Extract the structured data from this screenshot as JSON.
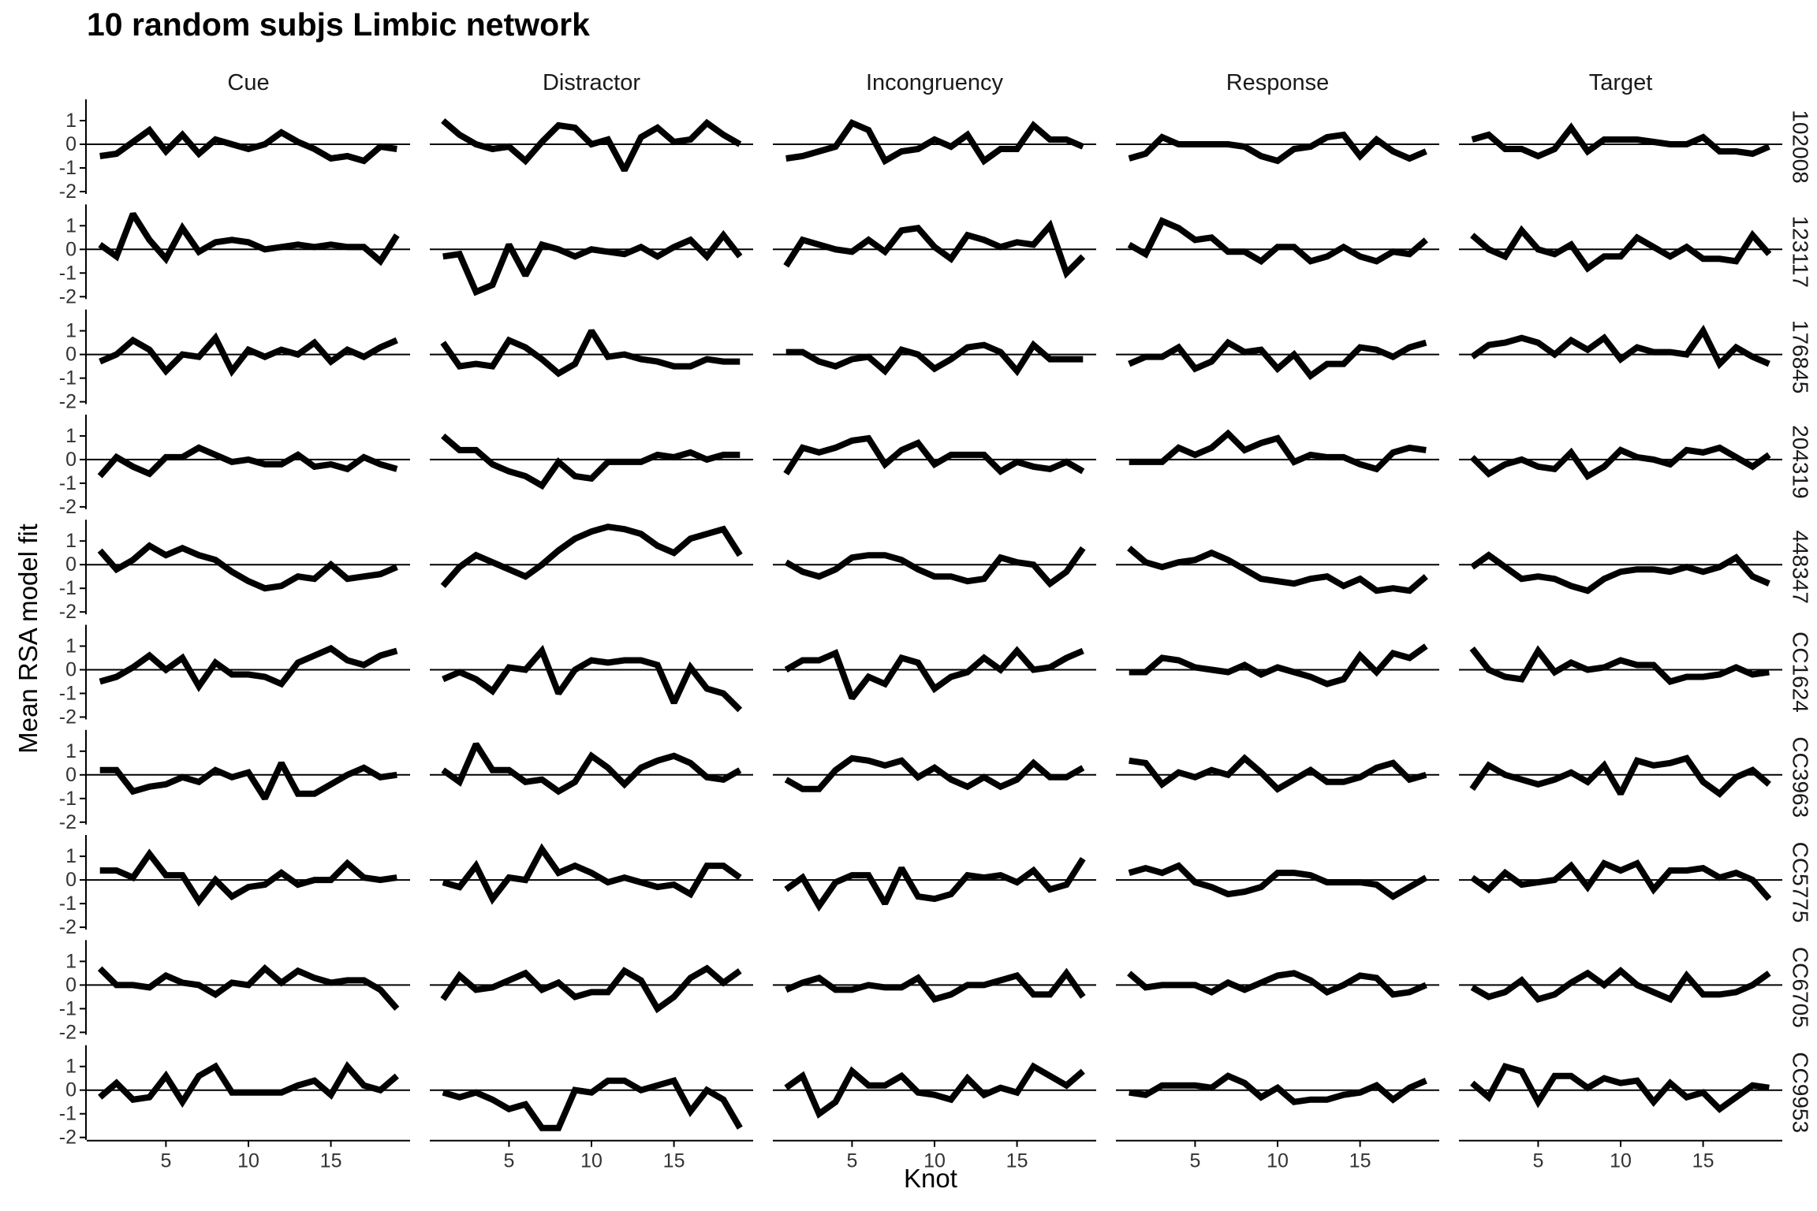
{
  "chart_data": {
    "type": "line",
    "title": "10 random subjs Limbic network",
    "xlabel": "Knot",
    "ylabel": "Mean RSA model fit",
    "columns": [
      "Cue",
      "Distractor",
      "Incongruency",
      "Response",
      "Target"
    ],
    "rows": [
      "102008",
      "123117",
      "176845",
      "204319",
      "448347",
      "CC1624",
      "CC3963",
      "CC5775",
      "CC6705",
      "CC9953"
    ],
    "x": [
      1,
      2,
      3,
      4,
      5,
      6,
      7,
      8,
      9,
      10,
      11,
      12,
      13,
      14,
      15,
      16,
      17,
      18,
      19
    ],
    "x_ticks": [
      5,
      10,
      15
    ],
    "xlim": [
      0.2,
      19.8
    ],
    "y_ticks": [
      1,
      0,
      -1,
      -2
    ],
    "ylim": [
      -2.1,
      1.9
    ],
    "reference_line": 0,
    "line_color": "#000000",
    "grid": false,
    "legend": "none",
    "values": [
      [
        [
          -0.5,
          -0.4,
          0.1,
          0.6,
          -0.3,
          0.4,
          -0.4,
          0.2,
          0.0,
          -0.2,
          0.0,
          0.5,
          0.1,
          -0.2,
          -0.6,
          -0.5,
          -0.7,
          -0.1,
          -0.2
        ],
        [
          1.0,
          0.4,
          0.0,
          -0.2,
          -0.1,
          -0.7,
          0.1,
          0.8,
          0.7,
          0.0,
          0.2,
          -1.1,
          0.3,
          0.7,
          0.1,
          0.2,
          0.9,
          0.4,
          0.0
        ],
        [
          -0.6,
          -0.5,
          -0.3,
          -0.1,
          0.9,
          0.6,
          -0.7,
          -0.3,
          -0.2,
          0.2,
          -0.1,
          0.4,
          -0.7,
          -0.2,
          -0.2,
          0.8,
          0.2,
          0.2,
          -0.1
        ],
        [
          -0.6,
          -0.4,
          0.3,
          0.0,
          0.0,
          0.0,
          0.0,
          -0.1,
          -0.5,
          -0.7,
          -0.2,
          -0.1,
          0.3,
          0.4,
          -0.5,
          0.2,
          -0.3,
          -0.6,
          -0.3
        ],
        [
          0.2,
          0.4,
          -0.2,
          -0.2,
          -0.5,
          -0.2,
          0.7,
          -0.3,
          0.2,
          0.2,
          0.2,
          0.1,
          0.0,
          0.0,
          0.3,
          -0.3,
          -0.3,
          -0.4,
          -0.1
        ]
      ],
      [
        [
          0.2,
          -0.3,
          1.5,
          0.4,
          -0.4,
          0.9,
          -0.1,
          0.3,
          0.4,
          0.3,
          0.0,
          0.1,
          0.2,
          0.1,
          0.2,
          0.1,
          0.1,
          -0.5,
          0.6
        ],
        [
          -0.3,
          -0.2,
          -1.8,
          -1.5,
          0.2,
          -1.1,
          0.2,
          0.0,
          -0.3,
          0.0,
          -0.1,
          -0.2,
          0.1,
          -0.3,
          0.1,
          0.4,
          -0.3,
          0.6,
          -0.3
        ],
        [
          -0.7,
          0.4,
          0.2,
          0.0,
          -0.1,
          0.4,
          -0.1,
          0.8,
          0.9,
          0.1,
          -0.4,
          0.6,
          0.4,
          0.1,
          0.3,
          0.2,
          1.0,
          -1.0,
          -0.3
        ],
        [
          0.2,
          -0.2,
          1.2,
          0.9,
          0.4,
          0.5,
          -0.1,
          -0.1,
          -0.5,
          0.1,
          0.1,
          -0.5,
          -0.3,
          0.1,
          -0.3,
          -0.5,
          -0.1,
          -0.2,
          0.4
        ],
        [
          0.6,
          0.0,
          -0.3,
          0.8,
          0.0,
          -0.2,
          0.2,
          -0.8,
          -0.3,
          -0.3,
          0.5,
          0.1,
          -0.3,
          0.1,
          -0.4,
          -0.4,
          -0.5,
          0.6,
          -0.2
        ]
      ],
      [
        [
          -0.3,
          0.0,
          0.6,
          0.2,
          -0.7,
          0.0,
          -0.1,
          0.7,
          -0.7,
          0.2,
          -0.1,
          0.2,
          0.0,
          0.5,
          -0.3,
          0.2,
          -0.1,
          0.3,
          0.6
        ],
        [
          0.5,
          -0.5,
          -0.4,
          -0.5,
          0.6,
          0.3,
          -0.2,
          -0.8,
          -0.4,
          1.0,
          -0.1,
          0.0,
          -0.2,
          -0.3,
          -0.5,
          -0.5,
          -0.2,
          -0.3,
          -0.3
        ],
        [
          0.1,
          0.1,
          -0.3,
          -0.5,
          -0.2,
          -0.1,
          -0.7,
          0.2,
          0.0,
          -0.6,
          -0.2,
          0.3,
          0.4,
          0.1,
          -0.7,
          0.4,
          -0.2,
          -0.2,
          -0.2
        ],
        [
          -0.4,
          -0.1,
          -0.1,
          0.3,
          -0.6,
          -0.3,
          0.5,
          0.1,
          0.2,
          -0.6,
          0.0,
          -0.9,
          -0.4,
          -0.4,
          0.3,
          0.2,
          -0.1,
          0.3,
          0.5
        ],
        [
          -0.1,
          0.4,
          0.5,
          0.7,
          0.5,
          0.0,
          0.6,
          0.2,
          0.7,
          -0.2,
          0.3,
          0.1,
          0.1,
          0.0,
          1.0,
          -0.4,
          0.3,
          -0.1,
          -0.4
        ]
      ],
      [
        [
          -0.7,
          0.1,
          -0.3,
          -0.6,
          0.1,
          0.1,
          0.5,
          0.2,
          -0.1,
          0.0,
          -0.2,
          -0.2,
          0.2,
          -0.3,
          -0.2,
          -0.4,
          0.1,
          -0.2,
          -0.4
        ],
        [
          1.0,
          0.4,
          0.4,
          -0.2,
          -0.5,
          -0.7,
          -1.1,
          -0.1,
          -0.7,
          -0.8,
          -0.1,
          -0.1,
          -0.1,
          0.2,
          0.1,
          0.3,
          0.0,
          0.2,
          0.2
        ],
        [
          -0.6,
          0.5,
          0.3,
          0.5,
          0.8,
          0.9,
          -0.2,
          0.4,
          0.7,
          -0.2,
          0.2,
          0.2,
          0.2,
          -0.5,
          -0.1,
          -0.3,
          -0.4,
          -0.1,
          -0.5
        ],
        [
          -0.1,
          -0.1,
          -0.1,
          0.5,
          0.2,
          0.5,
          1.1,
          0.4,
          0.7,
          0.9,
          -0.1,
          0.2,
          0.1,
          0.1,
          -0.2,
          -0.4,
          0.3,
          0.5,
          0.4
        ],
        [
          0.1,
          -0.6,
          -0.2,
          0.0,
          -0.3,
          -0.4,
          0.3,
          -0.7,
          -0.3,
          0.4,
          0.1,
          0.0,
          -0.2,
          0.4,
          0.3,
          0.5,
          0.1,
          -0.3,
          0.2
        ]
      ],
      [
        [
          0.6,
          -0.2,
          0.2,
          0.8,
          0.4,
          0.7,
          0.4,
          0.2,
          -0.3,
          -0.7,
          -1.0,
          -0.9,
          -0.5,
          -0.6,
          0.0,
          -0.6,
          -0.5,
          -0.4,
          -0.1
        ],
        [
          -0.9,
          -0.1,
          0.4,
          0.1,
          -0.2,
          -0.5,
          0.0,
          0.6,
          1.1,
          1.4,
          1.6,
          1.5,
          1.3,
          0.8,
          0.5,
          1.1,
          1.3,
          1.5,
          0.4
        ],
        [
          0.1,
          -0.3,
          -0.5,
          -0.2,
          0.3,
          0.4,
          0.4,
          0.2,
          -0.2,
          -0.5,
          -0.5,
          -0.7,
          -0.6,
          0.3,
          0.1,
          0.0,
          -0.8,
          -0.3,
          0.7
        ],
        [
          0.7,
          0.1,
          -0.1,
          0.1,
          0.2,
          0.5,
          0.2,
          -0.2,
          -0.6,
          -0.7,
          -0.8,
          -0.6,
          -0.5,
          -0.9,
          -0.6,
          -1.1,
          -1.0,
          -1.1,
          -0.5
        ],
        [
          -0.1,
          0.4,
          -0.1,
          -0.6,
          -0.5,
          -0.6,
          -0.9,
          -1.1,
          -0.6,
          -0.3,
          -0.2,
          -0.2,
          -0.3,
          -0.1,
          -0.3,
          -0.1,
          0.3,
          -0.5,
          -0.8
        ]
      ],
      [
        [
          -0.5,
          -0.3,
          0.1,
          0.6,
          0.0,
          0.5,
          -0.7,
          0.3,
          -0.2,
          -0.2,
          -0.3,
          -0.6,
          0.3,
          0.6,
          0.9,
          0.4,
          0.2,
          0.6,
          0.8
        ],
        [
          -0.4,
          -0.1,
          -0.4,
          -0.9,
          0.1,
          0.0,
          0.8,
          -1.0,
          0.0,
          0.4,
          0.3,
          0.4,
          0.4,
          0.2,
          -1.4,
          0.1,
          -0.8,
          -1.0,
          -1.7
        ],
        [
          0.0,
          0.4,
          0.4,
          0.7,
          -1.2,
          -0.3,
          -0.6,
          0.5,
          0.3,
          -0.8,
          -0.3,
          -0.1,
          0.5,
          0.0,
          0.8,
          0.0,
          0.1,
          0.5,
          0.8
        ],
        [
          -0.1,
          -0.1,
          0.5,
          0.4,
          0.1,
          0.0,
          -0.1,
          0.2,
          -0.2,
          0.1,
          -0.1,
          -0.3,
          -0.6,
          -0.4,
          0.6,
          -0.1,
          0.7,
          0.5,
          1.0
        ],
        [
          0.9,
          0.0,
          -0.3,
          -0.4,
          0.8,
          -0.1,
          0.3,
          0.0,
          0.1,
          0.4,
          0.2,
          0.2,
          -0.5,
          -0.3,
          -0.3,
          -0.2,
          0.1,
          -0.2,
          -0.1
        ]
      ],
      [
        [
          0.2,
          0.2,
          -0.7,
          -0.5,
          -0.4,
          -0.1,
          -0.3,
          0.2,
          -0.1,
          0.1,
          -1.0,
          0.5,
          -0.8,
          -0.8,
          -0.4,
          0.0,
          0.3,
          -0.1,
          0.0
        ],
        [
          0.2,
          -0.3,
          1.3,
          0.2,
          0.2,
          -0.3,
          -0.2,
          -0.7,
          -0.3,
          0.8,
          0.3,
          -0.4,
          0.3,
          0.6,
          0.8,
          0.5,
          -0.1,
          -0.2,
          0.2
        ],
        [
          -0.2,
          -0.6,
          -0.6,
          0.2,
          0.7,
          0.6,
          0.4,
          0.6,
          -0.1,
          0.3,
          -0.2,
          -0.5,
          -0.1,
          -0.5,
          -0.2,
          0.5,
          -0.1,
          -0.1,
          0.3
        ],
        [
          0.6,
          0.5,
          -0.4,
          0.1,
          -0.1,
          0.2,
          0.0,
          0.7,
          0.1,
          -0.6,
          -0.2,
          0.2,
          -0.3,
          -0.3,
          -0.1,
          0.3,
          0.5,
          -0.2,
          0.0
        ],
        [
          -0.6,
          0.4,
          0.0,
          -0.2,
          -0.4,
          -0.2,
          0.1,
          -0.3,
          0.4,
          -0.8,
          0.6,
          0.4,
          0.5,
          0.7,
          -0.3,
          -0.8,
          -0.1,
          0.2,
          -0.4
        ]
      ],
      [
        [
          0.4,
          0.4,
          0.1,
          1.1,
          0.2,
          0.2,
          -0.9,
          0.0,
          -0.7,
          -0.3,
          -0.2,
          0.3,
          -0.2,
          0.0,
          0.0,
          0.7,
          0.1,
          0.0,
          0.1
        ],
        [
          -0.1,
          -0.3,
          0.6,
          -0.8,
          0.1,
          0.0,
          1.3,
          0.3,
          0.6,
          0.3,
          -0.1,
          0.1,
          -0.1,
          -0.3,
          -0.2,
          -0.6,
          0.6,
          0.6,
          0.1
        ],
        [
          -0.4,
          0.1,
          -1.1,
          -0.1,
          0.2,
          0.2,
          -1.0,
          0.5,
          -0.7,
          -0.8,
          -0.6,
          0.2,
          0.1,
          0.2,
          -0.1,
          0.4,
          -0.4,
          -0.2,
          0.9
        ],
        [
          0.3,
          0.5,
          0.3,
          0.6,
          -0.1,
          -0.3,
          -0.6,
          -0.5,
          -0.3,
          0.3,
          0.3,
          0.2,
          -0.1,
          -0.1,
          -0.1,
          -0.2,
          -0.7,
          -0.3,
          0.1
        ],
        [
          0.1,
          -0.4,
          0.3,
          -0.2,
          -0.1,
          0.0,
          0.6,
          -0.3,
          0.7,
          0.4,
          0.7,
          -0.4,
          0.4,
          0.4,
          0.5,
          0.1,
          0.3,
          0.0,
          -0.8
        ]
      ],
      [
        [
          0.7,
          0.0,
          0.0,
          -0.1,
          0.4,
          0.1,
          0.0,
          -0.4,
          0.1,
          0.0,
          0.7,
          0.1,
          0.6,
          0.3,
          0.1,
          0.2,
          0.2,
          -0.2,
          -1.0
        ],
        [
          -0.6,
          0.4,
          -0.2,
          -0.1,
          0.2,
          0.5,
          -0.2,
          0.1,
          -0.5,
          -0.3,
          -0.3,
          0.6,
          0.2,
          -1.0,
          -0.5,
          0.3,
          0.7,
          0.1,
          0.6
        ],
        [
          -0.2,
          0.1,
          0.3,
          -0.2,
          -0.2,
          0.0,
          -0.1,
          -0.1,
          0.3,
          -0.6,
          -0.4,
          0.0,
          0.0,
          0.2,
          0.4,
          -0.4,
          -0.4,
          0.5,
          -0.5
        ],
        [
          0.5,
          -0.1,
          0.0,
          0.0,
          0.0,
          -0.3,
          0.1,
          -0.2,
          0.1,
          0.4,
          0.5,
          0.2,
          -0.3,
          0.0,
          0.4,
          0.3,
          -0.4,
          -0.3,
          0.0
        ],
        [
          -0.1,
          -0.5,
          -0.3,
          0.2,
          -0.6,
          -0.4,
          0.1,
          0.5,
          0.0,
          0.6,
          0.0,
          -0.3,
          -0.6,
          0.4,
          -0.4,
          -0.4,
          -0.3,
          0.0,
          0.5
        ]
      ],
      [
        [
          -0.3,
          0.3,
          -0.4,
          -0.3,
          0.6,
          -0.5,
          0.6,
          1.0,
          -0.1,
          -0.1,
          -0.1,
          -0.1,
          0.2,
          0.4,
          -0.2,
          1.0,
          0.2,
          0.0,
          0.6
        ],
        [
          -0.1,
          -0.3,
          -0.1,
          -0.4,
          -0.8,
          -0.6,
          -1.6,
          -1.6,
          0.0,
          -0.1,
          0.4,
          0.4,
          0.0,
          0.2,
          0.4,
          -0.9,
          0.0,
          -0.4,
          -1.6
        ],
        [
          0.1,
          0.6,
          -1.0,
          -0.5,
          0.8,
          0.2,
          0.2,
          0.6,
          -0.1,
          -0.2,
          -0.4,
          0.5,
          -0.2,
          0.1,
          -0.1,
          1.0,
          0.6,
          0.2,
          0.8
        ],
        [
          -0.1,
          -0.2,
          0.2,
          0.2,
          0.2,
          0.1,
          0.6,
          0.3,
          -0.3,
          0.1,
          -0.5,
          -0.4,
          -0.4,
          -0.2,
          -0.1,
          0.2,
          -0.4,
          0.1,
          0.4
        ],
        [
          0.3,
          -0.3,
          1.0,
          0.8,
          -0.5,
          0.6,
          0.6,
          0.1,
          0.5,
          0.3,
          0.4,
          -0.5,
          0.3,
          -0.3,
          -0.1,
          -0.8,
          -0.3,
          0.2,
          0.1
        ]
      ]
    ]
  }
}
